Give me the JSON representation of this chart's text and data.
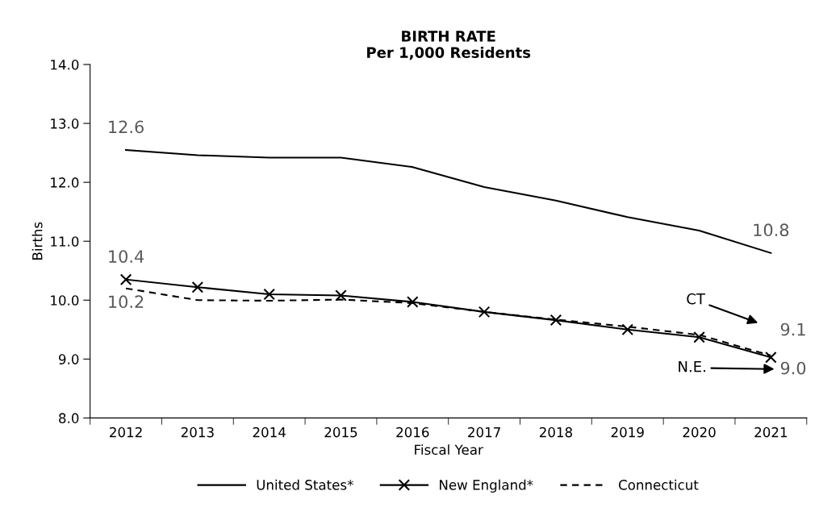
{
  "chart_data": {
    "type": "line",
    "title": "BIRTH RATE\nPer 1,000 Residents",
    "xlabel": "Fiscal Year",
    "ylabel": "Births",
    "categories": [
      "2012",
      "2013",
      "2014",
      "2015",
      "2016",
      "2017",
      "2018",
      "2019",
      "2020",
      "2021"
    ],
    "series": [
      {
        "name": "United States*",
        "color": "#000000",
        "line_style": "solid",
        "marker": "none",
        "values": [
          12.55,
          12.46,
          12.42,
          12.42,
          12.26,
          11.92,
          11.69,
          11.41,
          11.18,
          10.8
        ],
        "value_labels": [
          "12.6",
          null,
          null,
          null,
          null,
          null,
          null,
          null,
          null,
          "10.8"
        ]
      },
      {
        "name": "New England*",
        "color": "#000000",
        "line_style": "solid",
        "marker": "cross",
        "values": [
          10.35,
          10.22,
          10.1,
          10.08,
          9.97,
          9.8,
          9.66,
          9.5,
          9.37,
          9.03
        ],
        "value_labels": [
          "10.4",
          null,
          null,
          null,
          null,
          null,
          null,
          null,
          null,
          "9.0"
        ]
      },
      {
        "name": "Connecticut",
        "color": "#000000",
        "line_style": "dashed",
        "marker": "none",
        "values": [
          10.2,
          10.0,
          9.99,
          10.01,
          9.95,
          9.8,
          9.67,
          9.55,
          9.41,
          9.06
        ],
        "value_labels": [
          "10.2",
          null,
          null,
          null,
          null,
          null,
          null,
          null,
          null,
          "9.1"
        ]
      }
    ],
    "annotations": [
      "CT",
      "N.E."
    ],
    "ylim": [
      8.0,
      14.0
    ],
    "yticks": [
      {
        "value": 8,
        "label": "8.0"
      },
      {
        "value": 9,
        "label": "9.0"
      },
      {
        "value": 10,
        "label": "10.0"
      },
      {
        "value": 11,
        "label": "11.0"
      },
      {
        "value": 12,
        "label": "12.0"
      },
      {
        "value": 13,
        "label": "13.0"
      },
      {
        "value": 14,
        "label": "14.0"
      }
    ],
    "grid": false,
    "legend": "bottom"
  }
}
